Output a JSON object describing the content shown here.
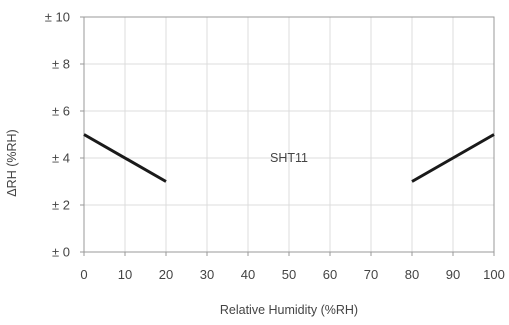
{
  "chart_data": {
    "type": "line",
    "title": "",
    "xlabel": "Relative Humidity (%RH)",
    "ylabel": "ΔRH (%RH)",
    "xlim": [
      0,
      100
    ],
    "ylim": [
      0,
      10
    ],
    "x_ticks": [
      0,
      10,
      20,
      30,
      40,
      50,
      60,
      70,
      80,
      90,
      100
    ],
    "x_tick_labels": [
      "0",
      "10",
      "20",
      "30",
      "40",
      "50",
      "60",
      "70",
      "80",
      "90",
      "100"
    ],
    "y_ticks": [
      0,
      2,
      4,
      6,
      8,
      10
    ],
    "y_tick_labels": [
      "± 0",
      "± 2",
      "± 4",
      "± 6",
      "± 8",
      "± 10"
    ],
    "grid": true,
    "series": [
      {
        "x": [
          0,
          20
        ],
        "y": [
          5,
          3
        ],
        "color": "#1a1a1a"
      },
      {
        "x": [
          80,
          100
        ],
        "y": [
          3,
          5
        ],
        "color": "#1a1a1a"
      }
    ],
    "annotations": [
      {
        "text": "SHT11",
        "x": 50,
        "y": 4
      }
    ],
    "colors": {
      "grid": "#dcdcdc",
      "axis": "#999999",
      "text": "#444444",
      "line": "#1a1a1a"
    }
  }
}
